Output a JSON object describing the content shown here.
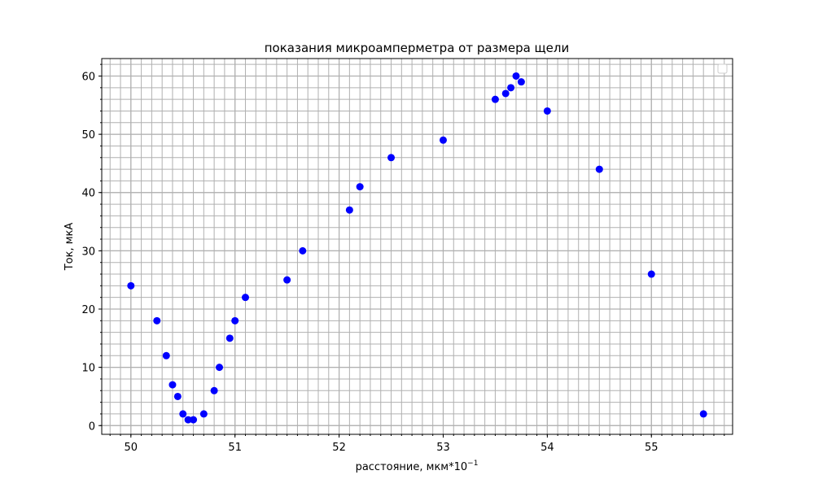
{
  "chart_data": {
    "type": "scatter",
    "title": "показания микроамперметра от размера щели",
    "xlabel": "расстояние, мкм*10",
    "xlabel_sup": "−1",
    "ylabel": "Ток, мкА",
    "xlim": [
      49.72,
      55.78
    ],
    "ylim": [
      -1.5,
      63
    ],
    "xticks": [
      50,
      51,
      52,
      53,
      54,
      55
    ],
    "xtick_labels": [
      "50",
      "51",
      "52",
      "53",
      "54",
      "55"
    ],
    "x_minor_step": 0.1,
    "yticks": [
      0,
      10,
      20,
      30,
      40,
      50,
      60
    ],
    "ytick_labels": [
      "0",
      "10",
      "20",
      "30",
      "40",
      "50",
      "60"
    ],
    "y_minor_step": 2,
    "grid": true,
    "grid_minor": true,
    "legend": "top-right (empty)",
    "series": [
      {
        "color": "#0000ff",
        "marker": "circle",
        "points": [
          {
            "x": 50.0,
            "y": 24
          },
          {
            "x": 50.25,
            "y": 18
          },
          {
            "x": 50.34,
            "y": 12
          },
          {
            "x": 50.4,
            "y": 7
          },
          {
            "x": 50.45,
            "y": 5
          },
          {
            "x": 50.5,
            "y": 2
          },
          {
            "x": 50.55,
            "y": 1
          },
          {
            "x": 50.6,
            "y": 1
          },
          {
            "x": 50.7,
            "y": 2
          },
          {
            "x": 50.8,
            "y": 6
          },
          {
            "x": 50.85,
            "y": 10
          },
          {
            "x": 50.95,
            "y": 15
          },
          {
            "x": 51.0,
            "y": 18
          },
          {
            "x": 51.1,
            "y": 22
          },
          {
            "x": 51.5,
            "y": 25
          },
          {
            "x": 51.65,
            "y": 30
          },
          {
            "x": 52.1,
            "y": 37
          },
          {
            "x": 52.2,
            "y": 41
          },
          {
            "x": 52.5,
            "y": 46
          },
          {
            "x": 53.0,
            "y": 49
          },
          {
            "x": 53.5,
            "y": 56
          },
          {
            "x": 53.6,
            "y": 57
          },
          {
            "x": 53.65,
            "y": 58
          },
          {
            "x": 53.7,
            "y": 60
          },
          {
            "x": 53.75,
            "y": 59
          },
          {
            "x": 54.0,
            "y": 54
          },
          {
            "x": 54.5,
            "y": 44
          },
          {
            "x": 55.0,
            "y": 26
          },
          {
            "x": 55.5,
            "y": 2
          }
        ]
      }
    ]
  }
}
